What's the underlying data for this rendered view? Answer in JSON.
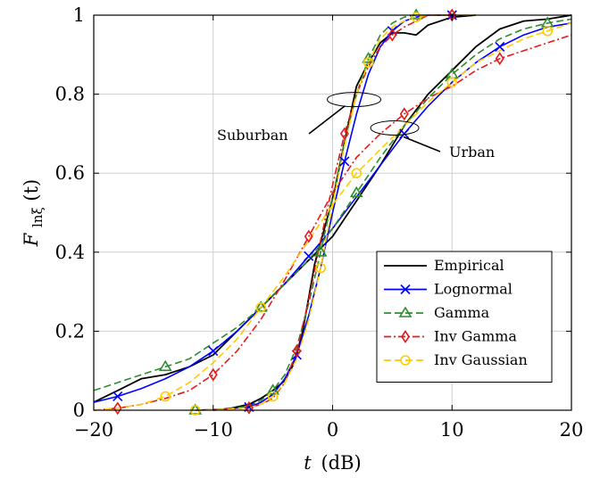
{
  "chart_data": {
    "type": "line",
    "xlabel": "t",
    "xlabel_unit": "(dB)",
    "ylabel": "F",
    "ylabel_sub": "lnξ",
    "ylabel_arg": "(t)",
    "xlim": [
      -20,
      20
    ],
    "ylim": [
      0,
      1
    ],
    "xticks": [
      -20,
      -10,
      0,
      10,
      20
    ],
    "xtick_labels": [
      "−20",
      "−10",
      "0",
      "10",
      "20"
    ],
    "yticks": [
      0,
      0.2,
      0.4,
      0.6,
      0.8,
      1
    ],
    "ytick_labels": [
      "0",
      "0.2",
      "0.4",
      "0.6",
      "0.8",
      "1"
    ],
    "grid": true,
    "legend_position": "bottom-right",
    "annotations": [
      {
        "text": "Suburban",
        "target": [
          0.9,
          0.8
        ]
      },
      {
        "text": "Urban",
        "target": [
          5.8,
          0.71
        ]
      }
    ],
    "series": [
      {
        "name": "Empirical",
        "group": "Suburban",
        "color": "#000000",
        "dash": "solid",
        "marker": "none",
        "x": [
          -10,
          -8.5,
          -7,
          -6,
          -5,
          -4,
          -3.2,
          -2.5,
          -1.5,
          -0.5,
          0.2,
          1,
          2,
          3,
          4,
          5,
          6,
          7,
          8,
          10,
          12
        ],
        "y": [
          0,
          0.005,
          0.015,
          0.03,
          0.05,
          0.075,
          0.12,
          0.2,
          0.37,
          0.48,
          0.56,
          0.68,
          0.82,
          0.88,
          0.93,
          0.955,
          0.955,
          0.95,
          0.975,
          0.995,
          1
        ]
      },
      {
        "name": "Empirical",
        "group": "Urban",
        "color": "#000000",
        "dash": "solid",
        "marker": "none",
        "x": [
          -20,
          -18,
          -16,
          -14,
          -12,
          -10,
          -8,
          -6,
          -4,
          -2,
          0,
          2,
          4,
          6,
          8,
          10,
          12,
          14,
          16,
          18,
          20
        ],
        "y": [
          0.02,
          0.05,
          0.08,
          0.09,
          0.11,
          0.14,
          0.2,
          0.26,
          0.32,
          0.38,
          0.44,
          0.53,
          0.62,
          0.72,
          0.8,
          0.86,
          0.92,
          0.965,
          0.985,
          0.99,
          1
        ]
      },
      {
        "name": "Lognormal",
        "group": "Suburban",
        "color": "#0000ff",
        "dash": "solid",
        "marker": "x",
        "x": [
          -11.5,
          -9,
          -7,
          -6,
          -5,
          -4,
          -3,
          -2,
          -1,
          0,
          1,
          2,
          3,
          4,
          5,
          6,
          7,
          8,
          10
        ],
        "y": [
          0,
          0.003,
          0.008,
          0.02,
          0.04,
          0.08,
          0.14,
          0.24,
          0.36,
          0.5,
          0.63,
          0.75,
          0.85,
          0.92,
          0.96,
          0.985,
          0.995,
          1,
          1
        ]
      },
      {
        "name": "Lognormal",
        "group": "Urban",
        "color": "#0000ff",
        "dash": "solid",
        "marker": "x",
        "x": [
          -20,
          -18,
          -16,
          -14,
          -12,
          -10,
          -8,
          -6,
          -4,
          -2,
          0,
          2,
          4,
          6,
          8,
          10,
          12,
          14,
          16,
          18,
          20
        ],
        "y": [
          0.02,
          0.035,
          0.055,
          0.08,
          0.11,
          0.15,
          0.2,
          0.26,
          0.32,
          0.39,
          0.46,
          0.54,
          0.62,
          0.7,
          0.77,
          0.83,
          0.88,
          0.92,
          0.95,
          0.97,
          0.98
        ]
      },
      {
        "name": "Gamma",
        "group": "Suburban",
        "color": "#2e8b2e",
        "dash": "dashed",
        "marker": "triangle",
        "x": [
          -11.5,
          -9,
          -7,
          -6,
          -5,
          -4,
          -3,
          -2,
          -1,
          0,
          1,
          2,
          3,
          4,
          5,
          6,
          7,
          8,
          10
        ],
        "y": [
          0,
          0.003,
          0.01,
          0.025,
          0.05,
          0.09,
          0.16,
          0.27,
          0.4,
          0.54,
          0.68,
          0.8,
          0.89,
          0.95,
          0.98,
          0.995,
          1,
          1,
          1
        ]
      },
      {
        "name": "Gamma",
        "group": "Urban",
        "color": "#2e8b2e",
        "dash": "dashed",
        "marker": "triangle",
        "x": [
          -20,
          -18,
          -16,
          -14,
          -12,
          -10,
          -8,
          -6,
          -4,
          -2,
          0,
          2,
          4,
          6,
          8,
          10,
          12,
          14,
          16,
          18,
          20
        ],
        "y": [
          0.05,
          0.07,
          0.09,
          0.11,
          0.13,
          0.17,
          0.21,
          0.26,
          0.32,
          0.38,
          0.46,
          0.55,
          0.64,
          0.72,
          0.79,
          0.85,
          0.9,
          0.94,
          0.965,
          0.98,
          0.99
        ]
      },
      {
        "name": "Inv Gamma",
        "group": "Suburban",
        "color": "#e31a1c",
        "dash": "dashdot",
        "marker": "diamond",
        "x": [
          -11.5,
          -9,
          -7,
          -6,
          -5,
          -4,
          -3,
          -2,
          -1,
          0,
          1,
          2,
          3,
          4,
          5,
          6,
          7,
          8,
          10
        ],
        "y": [
          0,
          0.002,
          0.006,
          0.015,
          0.03,
          0.07,
          0.15,
          0.28,
          0.43,
          0.57,
          0.7,
          0.8,
          0.87,
          0.92,
          0.95,
          0.97,
          0.985,
          1,
          1
        ]
      },
      {
        "name": "Inv Gamma",
        "group": "Urban",
        "color": "#e31a1c",
        "dash": "dashdot",
        "marker": "diamond",
        "x": [
          -20,
          -18,
          -16,
          -14,
          -12,
          -10,
          -8,
          -6,
          -4,
          -2,
          0,
          2,
          4,
          6,
          8,
          10,
          12,
          14,
          16,
          18,
          20
        ],
        "y": [
          0,
          0.005,
          0.015,
          0.03,
          0.05,
          0.09,
          0.15,
          0.23,
          0.33,
          0.44,
          0.55,
          0.64,
          0.7,
          0.75,
          0.79,
          0.82,
          0.86,
          0.89,
          0.91,
          0.93,
          0.95
        ]
      },
      {
        "name": "Inv Gaussian",
        "group": "Suburban",
        "color": "#ffcc00",
        "dash": "dashed",
        "marker": "circle",
        "x": [
          -11.5,
          -9,
          -7,
          -6,
          -5,
          -4,
          -3,
          -2,
          -1,
          0,
          1,
          2,
          3,
          4,
          5,
          6,
          7,
          8,
          10,
          12
        ],
        "y": [
          0,
          0.002,
          0.006,
          0.015,
          0.035,
          0.07,
          0.13,
          0.23,
          0.36,
          0.52,
          0.67,
          0.8,
          0.88,
          0.94,
          0.97,
          0.985,
          0.995,
          1,
          1,
          1
        ]
      },
      {
        "name": "Inv Gaussian",
        "group": "Urban",
        "color": "#ffcc00",
        "dash": "dashed",
        "marker": "circle",
        "x": [
          -20,
          -18,
          -16,
          -14,
          -12,
          -10,
          -8,
          -6,
          -4,
          -2,
          0,
          2,
          4,
          6,
          8,
          10,
          12,
          14,
          16,
          18,
          20
        ],
        "y": [
          0,
          0.005,
          0.015,
          0.035,
          0.07,
          0.12,
          0.18,
          0.26,
          0.34,
          0.43,
          0.52,
          0.6,
          0.66,
          0.72,
          0.78,
          0.83,
          0.88,
          0.91,
          0.94,
          0.96,
          0.98
        ]
      }
    ],
    "legend": [
      {
        "label": "Empirical",
        "color": "#000000",
        "dash": "solid",
        "marker": "none"
      },
      {
        "label": "Lognormal",
        "color": "#0000ff",
        "dash": "solid",
        "marker": "x"
      },
      {
        "label": "Gamma",
        "color": "#2e8b2e",
        "dash": "dashed",
        "marker": "triangle"
      },
      {
        "label": "Inv Gamma",
        "color": "#e31a1c",
        "dash": "dashdot",
        "marker": "diamond"
      },
      {
        "label": "Inv Gaussian",
        "color": "#ffcc00",
        "dash": "dashed",
        "marker": "circle"
      }
    ]
  }
}
